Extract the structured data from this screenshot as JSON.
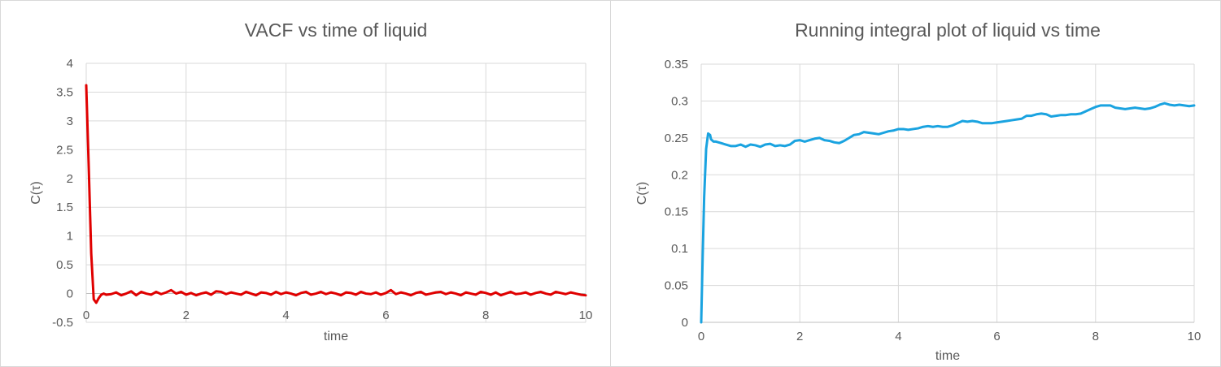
{
  "chart_data": [
    {
      "type": "line",
      "title": "VACF vs time of liquid",
      "xlabel": "time",
      "ylabel": "C(τ)",
      "xlim": [
        0,
        10
      ],
      "ylim": [
        -0.5,
        4
      ],
      "xticks": [
        "0",
        "2",
        "4",
        "6",
        "8",
        "10"
      ],
      "yticks": [
        "-0.5",
        "0",
        "0.5",
        "1",
        "1.5",
        "2",
        "2.5",
        "3",
        "3.5",
        "4"
      ],
      "grid": true,
      "color": "#e00000",
      "series": [
        {
          "x": [
            0,
            0.05,
            0.1,
            0.15,
            0.2,
            0.25,
            0.3,
            0.35,
            0.4,
            0.5,
            0.6,
            0.7,
            0.8,
            0.9,
            1.0,
            1.1,
            1.2,
            1.3,
            1.4,
            1.5,
            1.6,
            1.7,
            1.8,
            1.9,
            2.0,
            2.1,
            2.2,
            2.3,
            2.4,
            2.5,
            2.6,
            2.7,
            2.8,
            2.9,
            3.0,
            3.1,
            3.2,
            3.3,
            3.4,
            3.5,
            3.6,
            3.7,
            3.8,
            3.9,
            4.0,
            4.1,
            4.2,
            4.3,
            4.4,
            4.5,
            4.6,
            4.7,
            4.8,
            4.9,
            5.0,
            5.1,
            5.2,
            5.3,
            5.4,
            5.5,
            5.6,
            5.7,
            5.8,
            5.9,
            6.0,
            6.1,
            6.2,
            6.3,
            6.4,
            6.5,
            6.6,
            6.7,
            6.8,
            6.9,
            7.0,
            7.1,
            7.2,
            7.3,
            7.4,
            7.5,
            7.6,
            7.7,
            7.8,
            7.9,
            8.0,
            8.1,
            8.2,
            8.3,
            8.4,
            8.5,
            8.6,
            8.7,
            8.8,
            8.9,
            9.0,
            9.1,
            9.2,
            9.3,
            9.4,
            9.5,
            9.6,
            9.7,
            9.8,
            9.9,
            10.0
          ],
          "y": [
            3.62,
            2.2,
            0.7,
            -0.1,
            -0.16,
            -0.08,
            -0.02,
            0.0,
            -0.02,
            -0.01,
            0.02,
            -0.03,
            0.0,
            0.04,
            -0.03,
            0.03,
            0.0,
            -0.02,
            0.03,
            -0.01,
            0.02,
            0.06,
            0.0,
            0.03,
            -0.02,
            0.01,
            -0.03,
            0.0,
            0.02,
            -0.02,
            0.04,
            0.03,
            -0.01,
            0.02,
            0.0,
            -0.02,
            0.03,
            0.0,
            -0.03,
            0.02,
            0.01,
            -0.02,
            0.03,
            -0.01,
            0.02,
            0.0,
            -0.03,
            0.01,
            0.03,
            -0.02,
            0.0,
            0.03,
            -0.01,
            0.02,
            0.0,
            -0.03,
            0.02,
            0.01,
            -0.02,
            0.03,
            0.0,
            -0.01,
            0.02,
            -0.02,
            0.01,
            0.06,
            -0.01,
            0.02,
            0.0,
            -0.03,
            0.01,
            0.03,
            -0.02,
            0.0,
            0.02,
            0.03,
            -0.01,
            0.02,
            0.0,
            -0.03,
            0.02,
            0.0,
            -0.02,
            0.03,
            0.01,
            -0.02,
            0.02,
            -0.03,
            0.0,
            0.03,
            -0.01,
            0.0,
            0.02,
            -0.02,
            0.01,
            0.03,
            0.0,
            -0.02,
            0.03,
            0.01,
            -0.01,
            0.02,
            0.0,
            -0.02,
            -0.03
          ]
        }
      ]
    },
    {
      "type": "line",
      "title": "Running integral plot of liquid vs time",
      "xlabel": "time",
      "ylabel": "C(τ)",
      "xlim": [
        0,
        10
      ],
      "ylim": [
        0,
        0.35
      ],
      "xticks": [
        "0",
        "2",
        "4",
        "6",
        "8",
        "10"
      ],
      "yticks": [
        "0",
        "0.05",
        "0.1",
        "0.15",
        "0.2",
        "0.25",
        "0.3",
        "0.35"
      ],
      "grid": true,
      "color": "#1aa3e0",
      "series": [
        {
          "x": [
            0,
            0.03,
            0.06,
            0.1,
            0.14,
            0.18,
            0.2,
            0.25,
            0.3,
            0.4,
            0.5,
            0.6,
            0.7,
            0.8,
            0.9,
            1.0,
            1.1,
            1.2,
            1.3,
            1.4,
            1.5,
            1.6,
            1.7,
            1.8,
            1.9,
            2.0,
            2.1,
            2.2,
            2.3,
            2.4,
            2.5,
            2.6,
            2.7,
            2.8,
            2.9,
            3.0,
            3.1,
            3.2,
            3.3,
            3.4,
            3.5,
            3.6,
            3.7,
            3.8,
            3.9,
            4.0,
            4.1,
            4.2,
            4.3,
            4.4,
            4.5,
            4.6,
            4.7,
            4.8,
            4.9,
            5.0,
            5.1,
            5.2,
            5.3,
            5.4,
            5.5,
            5.6,
            5.7,
            5.8,
            5.9,
            6.0,
            6.1,
            6.2,
            6.3,
            6.4,
            6.5,
            6.6,
            6.7,
            6.8,
            6.9,
            7.0,
            7.1,
            7.2,
            7.3,
            7.4,
            7.5,
            7.6,
            7.7,
            7.8,
            7.9,
            8.0,
            8.1,
            8.2,
            8.3,
            8.4,
            8.5,
            8.6,
            8.7,
            8.8,
            8.9,
            9.0,
            9.1,
            9.2,
            9.3,
            9.4,
            9.5,
            9.6,
            9.7,
            9.8,
            9.9,
            10.0
          ],
          "y": [
            0,
            0.09,
            0.17,
            0.235,
            0.256,
            0.254,
            0.248,
            0.245,
            0.245,
            0.243,
            0.241,
            0.239,
            0.239,
            0.241,
            0.238,
            0.241,
            0.24,
            0.238,
            0.241,
            0.242,
            0.239,
            0.24,
            0.239,
            0.241,
            0.246,
            0.247,
            0.245,
            0.247,
            0.249,
            0.25,
            0.247,
            0.246,
            0.244,
            0.243,
            0.246,
            0.25,
            0.254,
            0.255,
            0.258,
            0.257,
            0.256,
            0.255,
            0.257,
            0.259,
            0.26,
            0.262,
            0.262,
            0.261,
            0.262,
            0.263,
            0.265,
            0.266,
            0.265,
            0.266,
            0.265,
            0.265,
            0.267,
            0.27,
            0.273,
            0.272,
            0.273,
            0.272,
            0.27,
            0.27,
            0.27,
            0.271,
            0.272,
            0.273,
            0.274,
            0.275,
            0.276,
            0.28,
            0.28,
            0.282,
            0.283,
            0.282,
            0.279,
            0.28,
            0.281,
            0.281,
            0.282,
            0.282,
            0.283,
            0.286,
            0.289,
            0.292,
            0.294,
            0.294,
            0.294,
            0.291,
            0.29,
            0.289,
            0.29,
            0.291,
            0.29,
            0.289,
            0.29,
            0.292,
            0.295,
            0.297,
            0.295,
            0.294,
            0.295,
            0.294,
            0.293,
            0.294
          ]
        }
      ]
    }
  ]
}
